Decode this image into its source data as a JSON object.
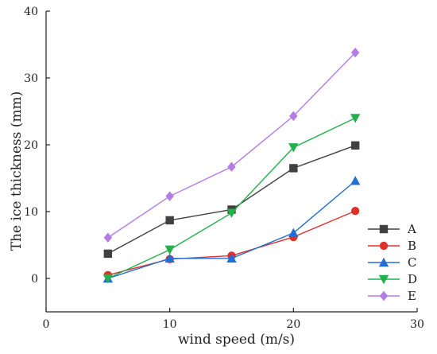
{
  "chart_data": {
    "type": "line",
    "xlabel": "wind speed (m/s)",
    "ylabel": "The ice thickness (mm)",
    "xlim": [
      0,
      30
    ],
    "ylim": [
      -5,
      40
    ],
    "xticks": [
      0,
      10,
      20,
      30
    ],
    "yticks": [
      0,
      10,
      20,
      30,
      40
    ],
    "grid": false,
    "legend_position": "bottom-right",
    "x": [
      5,
      10,
      15,
      20,
      25
    ],
    "series": [
      {
        "name": "A",
        "values": [
          3.7,
          8.7,
          10.3,
          16.5,
          19.9
        ],
        "color": "#404040",
        "marker": "square"
      },
      {
        "name": "B",
        "values": [
          0.5,
          2.9,
          3.4,
          6.2,
          10.1
        ],
        "color": "#e0302a",
        "marker": "circle"
      },
      {
        "name": "C",
        "values": [
          0.0,
          3.0,
          3.0,
          6.8,
          14.6
        ],
        "color": "#1f6fd6",
        "marker": "triangle-up"
      },
      {
        "name": "D",
        "values": [
          0.0,
          4.3,
          9.8,
          19.6,
          24.0
        ],
        "color": "#22b14c",
        "marker": "triangle-down"
      },
      {
        "name": "E",
        "values": [
          6.1,
          12.3,
          16.7,
          24.3,
          33.8
        ],
        "color": "#b57be6",
        "marker": "diamond"
      }
    ]
  }
}
